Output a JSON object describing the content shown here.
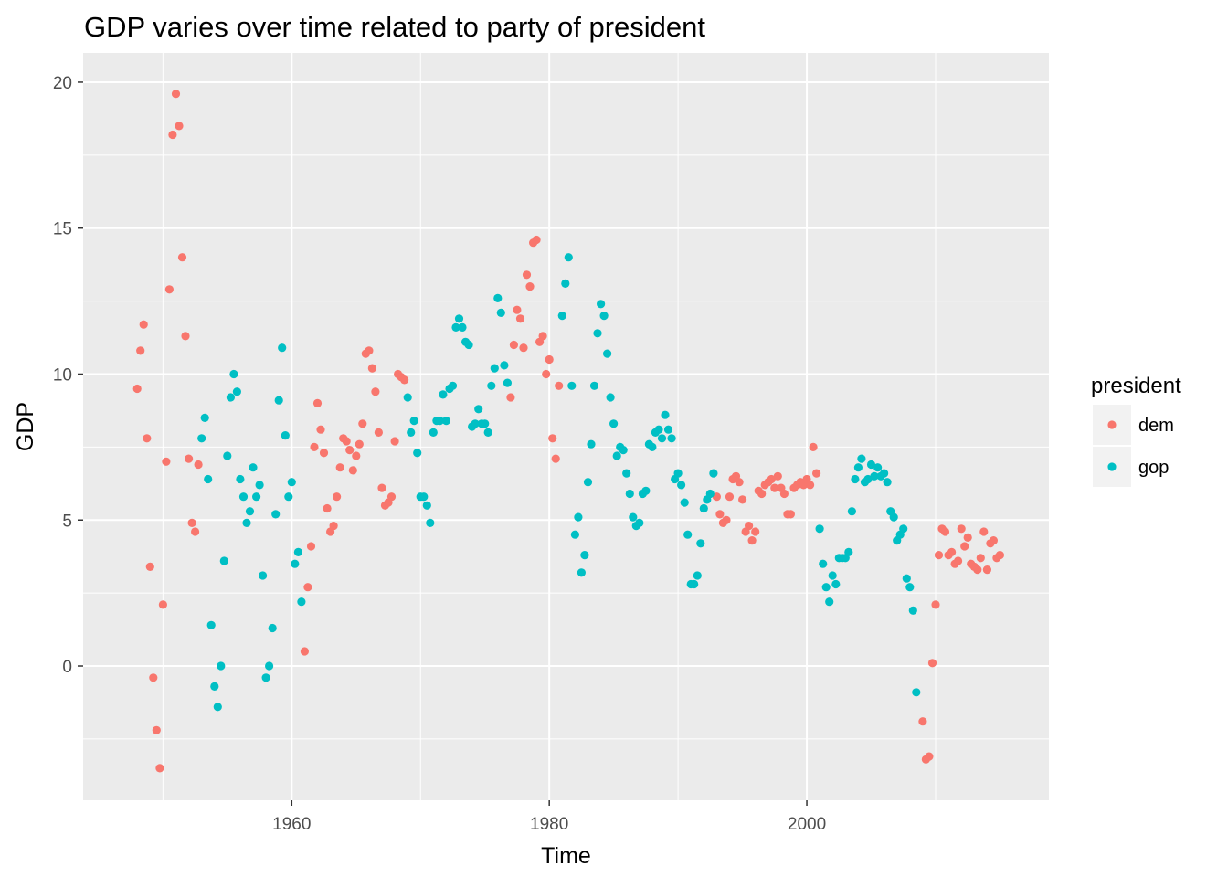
{
  "chart_data": {
    "type": "scatter",
    "title": "GDP varies over time related to party of president",
    "xlabel": "Time",
    "ylabel": "GDP",
    "xlim": [
      1943.8,
      2018.8
    ],
    "ylim": [
      -4.6,
      21.0
    ],
    "x_ticks": [
      1960,
      1980,
      2000
    ],
    "x_tick_labels": [
      "1960",
      "1980",
      "2000"
    ],
    "y_ticks": [
      0,
      5,
      10,
      15,
      20
    ],
    "y_tick_labels": [
      "0",
      "5",
      "10",
      "15",
      "20"
    ],
    "grid": true,
    "background": "#ebebeb",
    "legend": {
      "title": "president",
      "position": "right",
      "entries": [
        {
          "label": "dem",
          "color": "#f8766d"
        },
        {
          "label": "gop",
          "color": "#00bfc4"
        }
      ]
    },
    "series": [
      {
        "name": "dem",
        "color": "#f8766d",
        "points": [
          [
            1948.0,
            9.5
          ],
          [
            1948.25,
            10.8
          ],
          [
            1948.5,
            11.7
          ],
          [
            1948.75,
            7.8
          ],
          [
            1949.0,
            3.4
          ],
          [
            1949.25,
            -0.4
          ],
          [
            1949.5,
            -2.2
          ],
          [
            1949.75,
            -3.5
          ],
          [
            1950.0,
            2.1
          ],
          [
            1950.25,
            7.0
          ],
          [
            1950.5,
            12.9
          ],
          [
            1950.75,
            18.2
          ],
          [
            1951.0,
            19.6
          ],
          [
            1951.25,
            18.5
          ],
          [
            1951.5,
            14.0
          ],
          [
            1951.75,
            11.3
          ],
          [
            1952.0,
            7.1
          ],
          [
            1952.25,
            4.9
          ],
          [
            1952.5,
            4.6
          ],
          [
            1952.75,
            6.9
          ],
          [
            1961.0,
            0.5
          ],
          [
            1961.25,
            2.7
          ],
          [
            1961.5,
            4.1
          ],
          [
            1961.75,
            7.5
          ],
          [
            1962.0,
            9.0
          ],
          [
            1962.25,
            8.1
          ],
          [
            1962.5,
            7.3
          ],
          [
            1962.75,
            5.4
          ],
          [
            1963.0,
            4.6
          ],
          [
            1963.25,
            4.8
          ],
          [
            1963.5,
            5.8
          ],
          [
            1963.75,
            6.8
          ],
          [
            1964.0,
            7.8
          ],
          [
            1964.25,
            7.7
          ],
          [
            1964.5,
            7.4
          ],
          [
            1964.75,
            6.7
          ],
          [
            1965.0,
            7.2
          ],
          [
            1965.25,
            7.6
          ],
          [
            1965.5,
            8.3
          ],
          [
            1965.75,
            10.7
          ],
          [
            1966.0,
            10.8
          ],
          [
            1966.25,
            10.2
          ],
          [
            1966.5,
            9.4
          ],
          [
            1966.75,
            8.0
          ],
          [
            1967.0,
            6.1
          ],
          [
            1967.25,
            5.5
          ],
          [
            1967.5,
            5.6
          ],
          [
            1967.75,
            5.8
          ],
          [
            1968.0,
            7.7
          ],
          [
            1968.25,
            10.0
          ],
          [
            1968.5,
            9.9
          ],
          [
            1968.75,
            9.8
          ],
          [
            1977.0,
            9.2
          ],
          [
            1977.25,
            11.0
          ],
          [
            1977.5,
            12.2
          ],
          [
            1977.75,
            11.9
          ],
          [
            1978.0,
            10.9
          ],
          [
            1978.25,
            13.4
          ],
          [
            1978.5,
            13.0
          ],
          [
            1978.75,
            14.5
          ],
          [
            1979.0,
            14.6
          ],
          [
            1979.25,
            11.1
          ],
          [
            1979.5,
            11.3
          ],
          [
            1979.75,
            10.0
          ],
          [
            1980.0,
            10.5
          ],
          [
            1980.25,
            7.8
          ],
          [
            1980.5,
            7.1
          ],
          [
            1980.75,
            9.6
          ],
          [
            1993.0,
            5.8
          ],
          [
            1993.25,
            5.2
          ],
          [
            1993.5,
            4.9
          ],
          [
            1993.75,
            5.0
          ],
          [
            1994.0,
            5.8
          ],
          [
            1994.25,
            6.4
          ],
          [
            1994.5,
            6.5
          ],
          [
            1994.75,
            6.3
          ],
          [
            1995.0,
            5.7
          ],
          [
            1995.25,
            4.6
          ],
          [
            1995.5,
            4.8
          ],
          [
            1995.75,
            4.3
          ],
          [
            1996.0,
            4.6
          ],
          [
            1996.25,
            6.0
          ],
          [
            1996.5,
            5.9
          ],
          [
            1996.75,
            6.2
          ],
          [
            1997.0,
            6.3
          ],
          [
            1997.25,
            6.4
          ],
          [
            1997.5,
            6.1
          ],
          [
            1997.75,
            6.5
          ],
          [
            1998.0,
            6.1
          ],
          [
            1998.25,
            5.9
          ],
          [
            1998.5,
            5.2
          ],
          [
            1998.75,
            5.2
          ],
          [
            1999.0,
            6.1
          ],
          [
            1999.25,
            6.2
          ],
          [
            1999.5,
            6.3
          ],
          [
            1999.75,
            6.2
          ],
          [
            2000.0,
            6.4
          ],
          [
            2000.25,
            6.2
          ],
          [
            2000.5,
            7.5
          ],
          [
            2000.75,
            6.6
          ],
          [
            2009.0,
            -1.9
          ],
          [
            2009.25,
            -3.2
          ],
          [
            2009.5,
            -3.1
          ],
          [
            2009.75,
            0.1
          ],
          [
            2010.0,
            2.1
          ],
          [
            2010.25,
            3.8
          ],
          [
            2010.5,
            4.7
          ],
          [
            2010.75,
            4.6
          ],
          [
            2011.0,
            3.8
          ],
          [
            2011.25,
            3.9
          ],
          [
            2011.5,
            3.5
          ],
          [
            2011.75,
            3.6
          ],
          [
            2012.0,
            4.7
          ],
          [
            2012.25,
            4.1
          ],
          [
            2012.5,
            4.4
          ],
          [
            2012.75,
            3.5
          ],
          [
            2013.0,
            3.4
          ],
          [
            2013.25,
            3.3
          ],
          [
            2013.5,
            3.7
          ],
          [
            2013.75,
            4.6
          ],
          [
            2014.0,
            3.3
          ],
          [
            2014.25,
            4.2
          ],
          [
            2014.5,
            4.3
          ],
          [
            2014.75,
            3.7
          ],
          [
            2015.0,
            3.8
          ]
        ]
      },
      {
        "name": "gop",
        "color": "#00bfc4",
        "points": [
          [
            1953.0,
            7.8
          ],
          [
            1953.25,
            8.5
          ],
          [
            1953.5,
            6.4
          ],
          [
            1953.75,
            1.4
          ],
          [
            1954.0,
            -0.7
          ],
          [
            1954.25,
            -1.4
          ],
          [
            1954.5,
            0.0
          ],
          [
            1954.75,
            3.6
          ],
          [
            1955.0,
            7.2
          ],
          [
            1955.25,
            9.2
          ],
          [
            1955.5,
            10.0
          ],
          [
            1955.75,
            9.4
          ],
          [
            1956.0,
            6.4
          ],
          [
            1956.25,
            5.8
          ],
          [
            1956.5,
            4.9
          ],
          [
            1956.75,
            5.3
          ],
          [
            1957.0,
            6.8
          ],
          [
            1957.25,
            5.8
          ],
          [
            1957.5,
            6.2
          ],
          [
            1957.75,
            3.1
          ],
          [
            1958.0,
            -0.4
          ],
          [
            1958.25,
            0.0
          ],
          [
            1958.5,
            1.3
          ],
          [
            1958.75,
            5.2
          ],
          [
            1959.0,
            9.1
          ],
          [
            1959.25,
            10.9
          ],
          [
            1959.5,
            7.9
          ],
          [
            1959.75,
            5.8
          ],
          [
            1960.0,
            6.3
          ],
          [
            1960.25,
            3.5
          ],
          [
            1960.5,
            3.9
          ],
          [
            1960.75,
            2.2
          ],
          [
            1969.0,
            9.2
          ],
          [
            1969.25,
            8.0
          ],
          [
            1969.5,
            8.4
          ],
          [
            1969.75,
            7.3
          ],
          [
            1970.0,
            5.8
          ],
          [
            1970.25,
            5.8
          ],
          [
            1970.5,
            5.5
          ],
          [
            1970.75,
            4.9
          ],
          [
            1971.0,
            8.0
          ],
          [
            1971.25,
            8.4
          ],
          [
            1971.5,
            8.4
          ],
          [
            1971.75,
            9.3
          ],
          [
            1972.0,
            8.4
          ],
          [
            1972.25,
            9.5
          ],
          [
            1972.5,
            9.6
          ],
          [
            1972.75,
            11.6
          ],
          [
            1973.0,
            11.9
          ],
          [
            1973.25,
            11.6
          ],
          [
            1973.5,
            11.1
          ],
          [
            1973.75,
            11.0
          ],
          [
            1974.0,
            8.2
          ],
          [
            1974.25,
            8.3
          ],
          [
            1974.5,
            8.8
          ],
          [
            1974.75,
            8.3
          ],
          [
            1975.0,
            8.3
          ],
          [
            1975.25,
            8.0
          ],
          [
            1975.5,
            9.6
          ],
          [
            1975.75,
            10.2
          ],
          [
            1976.0,
            12.6
          ],
          [
            1976.25,
            12.1
          ],
          [
            1976.5,
            10.3
          ],
          [
            1976.75,
            9.7
          ],
          [
            1981.0,
            12.0
          ],
          [
            1981.25,
            13.1
          ],
          [
            1981.5,
            14.0
          ],
          [
            1981.75,
            9.6
          ],
          [
            1982.0,
            4.5
          ],
          [
            1982.25,
            5.1
          ],
          [
            1982.5,
            3.2
          ],
          [
            1982.75,
            3.8
          ],
          [
            1983.0,
            6.3
          ],
          [
            1983.25,
            7.6
          ],
          [
            1983.5,
            9.6
          ],
          [
            1983.75,
            11.4
          ],
          [
            1984.0,
            12.4
          ],
          [
            1984.25,
            12.0
          ],
          [
            1984.5,
            10.7
          ],
          [
            1984.75,
            9.2
          ],
          [
            1985.0,
            8.3
          ],
          [
            1985.25,
            7.2
          ],
          [
            1985.5,
            7.5
          ],
          [
            1985.75,
            7.4
          ],
          [
            1986.0,
            6.6
          ],
          [
            1986.25,
            5.9
          ],
          [
            1986.5,
            5.1
          ],
          [
            1986.75,
            4.8
          ],
          [
            1987.0,
            4.9
          ],
          [
            1987.25,
            5.9
          ],
          [
            1987.5,
            6.0
          ],
          [
            1987.75,
            7.6
          ],
          [
            1988.0,
            7.5
          ],
          [
            1988.25,
            8.0
          ],
          [
            1988.5,
            8.1
          ],
          [
            1988.75,
            7.8
          ],
          [
            1989.0,
            8.6
          ],
          [
            1989.25,
            8.1
          ],
          [
            1989.5,
            7.8
          ],
          [
            1989.75,
            6.4
          ],
          [
            1990.0,
            6.6
          ],
          [
            1990.25,
            6.2
          ],
          [
            1990.5,
            5.6
          ],
          [
            1990.75,
            4.5
          ],
          [
            1991.0,
            2.8
          ],
          [
            1991.25,
            2.8
          ],
          [
            1991.5,
            3.1
          ],
          [
            1991.75,
            4.2
          ],
          [
            1992.0,
            5.4
          ],
          [
            1992.25,
            5.7
          ],
          [
            1992.5,
            5.9
          ],
          [
            1992.75,
            6.6
          ],
          [
            2001.0,
            4.7
          ],
          [
            2001.25,
            3.5
          ],
          [
            2001.5,
            2.7
          ],
          [
            2001.75,
            2.2
          ],
          [
            2002.0,
            3.1
          ],
          [
            2002.25,
            2.8
          ],
          [
            2002.5,
            3.7
          ],
          [
            2002.75,
            3.7
          ],
          [
            2003.0,
            3.7
          ],
          [
            2003.25,
            3.9
          ],
          [
            2003.5,
            5.3
          ],
          [
            2003.75,
            6.4
          ],
          [
            2004.0,
            6.8
          ],
          [
            2004.25,
            7.1
          ],
          [
            2004.5,
            6.3
          ],
          [
            2004.75,
            6.4
          ],
          [
            2005.0,
            6.9
          ],
          [
            2005.25,
            6.5
          ],
          [
            2005.5,
            6.8
          ],
          [
            2005.75,
            6.5
          ],
          [
            2006.0,
            6.6
          ],
          [
            2006.25,
            6.3
          ],
          [
            2006.5,
            5.3
          ],
          [
            2006.75,
            5.1
          ],
          [
            2007.0,
            4.3
          ],
          [
            2007.25,
            4.5
          ],
          [
            2007.5,
            4.7
          ],
          [
            2007.75,
            3.0
          ],
          [
            2008.0,
            2.7
          ],
          [
            2008.25,
            1.9
          ],
          [
            2008.5,
            -0.9
          ]
        ]
      }
    ]
  }
}
